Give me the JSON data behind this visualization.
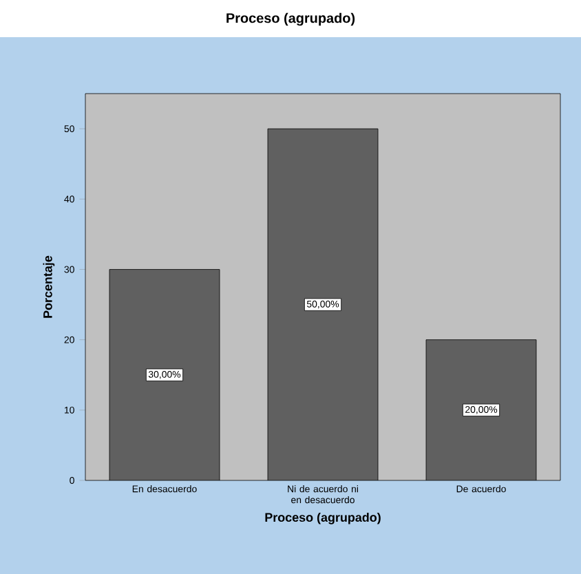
{
  "chart_data": {
    "type": "bar",
    "title": "Proceso (agrupado)",
    "xlabel": "Proceso (agrupado)",
    "ylabel": "Porcentaje",
    "categories": [
      "En desacuerdo",
      "Ni de acuerdo ni en desacuerdo",
      "De acuerdo"
    ],
    "values": [
      30,
      50,
      20
    ],
    "color": "#606060",
    "value_labels": [
      "30,00%",
      "50,00%",
      "20,00%"
    ],
    "ylim": [
      0,
      55
    ],
    "yticks": [
      0,
      10,
      20,
      30,
      40,
      50
    ]
  }
}
